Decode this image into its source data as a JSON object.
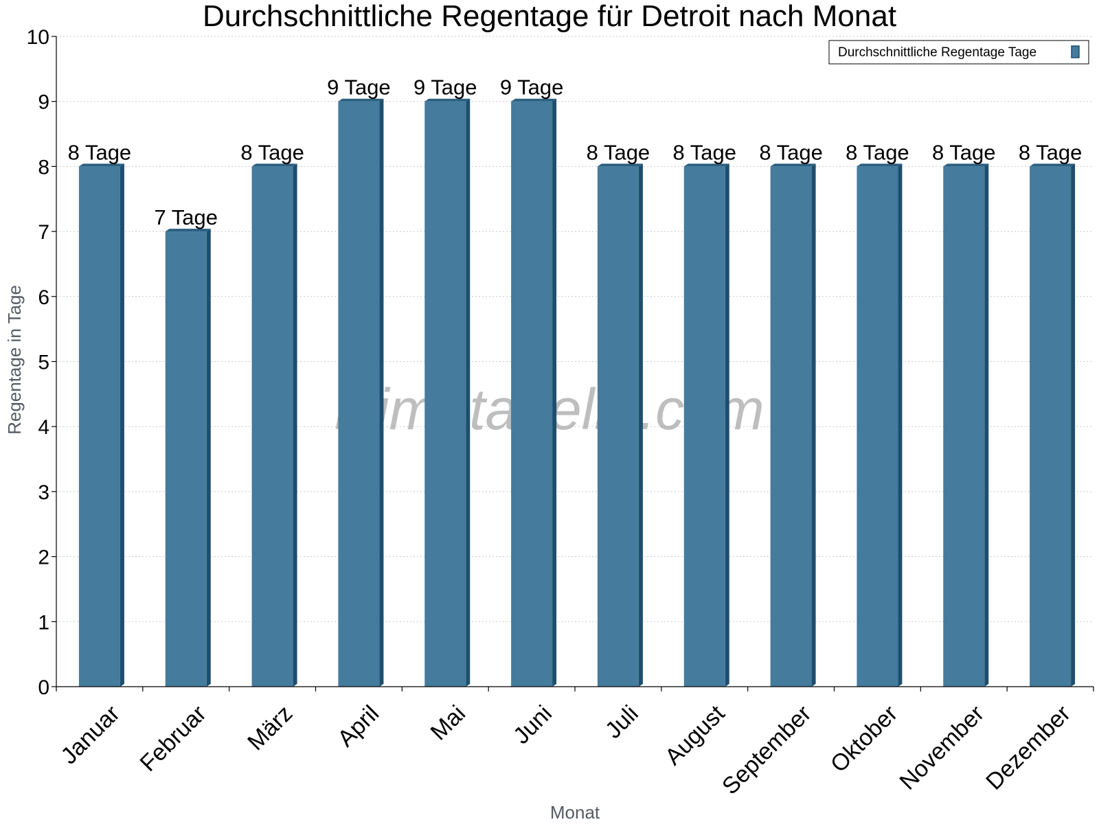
{
  "chart_data": {
    "type": "bar",
    "title": "Durchschnittliche Regentage für Detroit nach Monat",
    "xlabel": "Monat",
    "ylabel": "Regentage in Tage",
    "ylim": [
      0,
      10
    ],
    "yticks": [
      "0",
      "1",
      "2",
      "3",
      "4",
      "5",
      "6",
      "7",
      "8",
      "9",
      "10"
    ],
    "grid": true,
    "legend_position": "top-right",
    "categories": [
      "Januar",
      "Februar",
      "März",
      "April",
      "Mai",
      "Juni",
      "Juli",
      "August",
      "September",
      "Oktober",
      "November",
      "Dezember"
    ],
    "series": [
      {
        "name": "Durchschnittliche Regentage Tage",
        "color": "#457b9d",
        "values": [
          8,
          7,
          8,
          9,
          9,
          9,
          8,
          8,
          8,
          8,
          8,
          8
        ],
        "data_labels": [
          "8 Tage",
          "7 Tage",
          "8 Tage",
          "9 Tage",
          "9 Tage",
          "9 Tage",
          "8 Tage",
          "8 Tage",
          "8 Tage",
          "8 Tage",
          "8 Tage",
          "8 Tage"
        ]
      }
    ]
  },
  "watermark": "klimatabelle.com",
  "colors": {
    "bar_front": "#457b9d",
    "bar_side": "#1d4e6e",
    "bar_top": "#2b5f80",
    "grid": "#c8c8c8"
  }
}
